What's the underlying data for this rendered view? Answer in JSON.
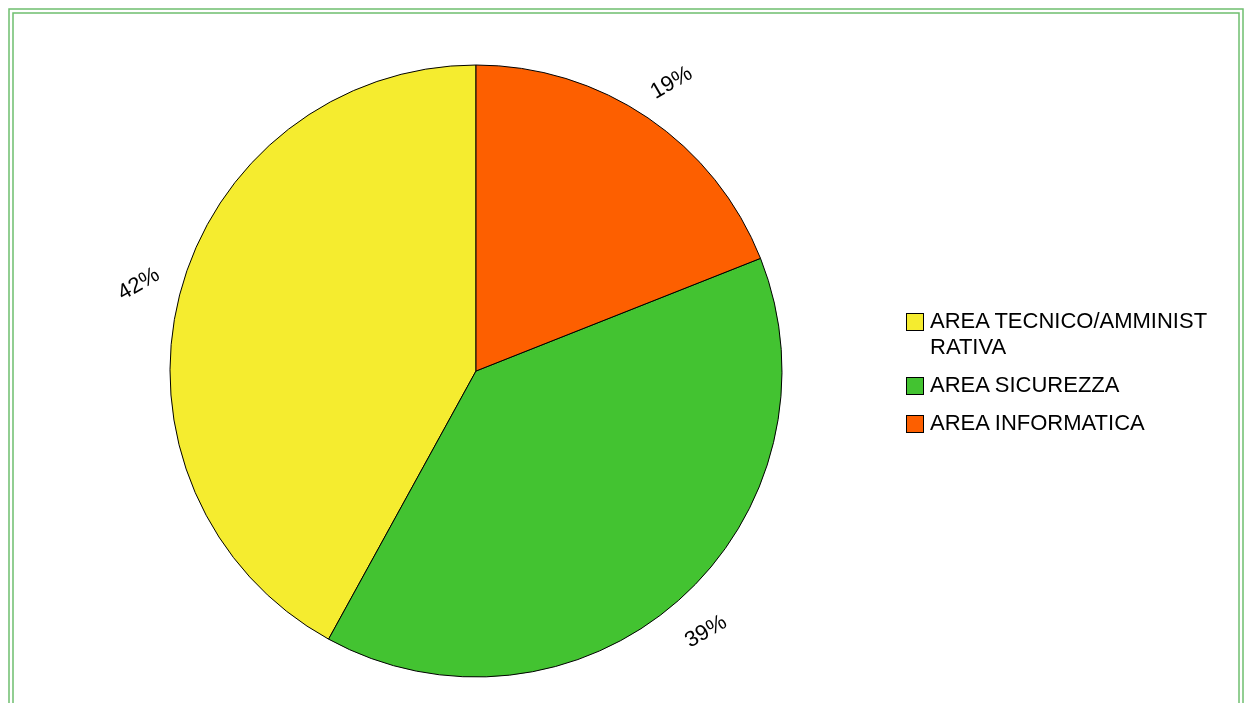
{
  "chart_data": {
    "type": "pie",
    "categories": [
      "AREA TECNICO/AMMINISTRATIVA",
      "AREA SICUREZZA",
      "AREA INFORMATICA"
    ],
    "values": [
      42,
      39,
      19
    ],
    "colors": [
      "#f5ec2f",
      "#43c331",
      "#fd5f00"
    ],
    "value_labels": [
      "42%",
      "39%",
      "19%"
    ],
    "legend": "right"
  }
}
